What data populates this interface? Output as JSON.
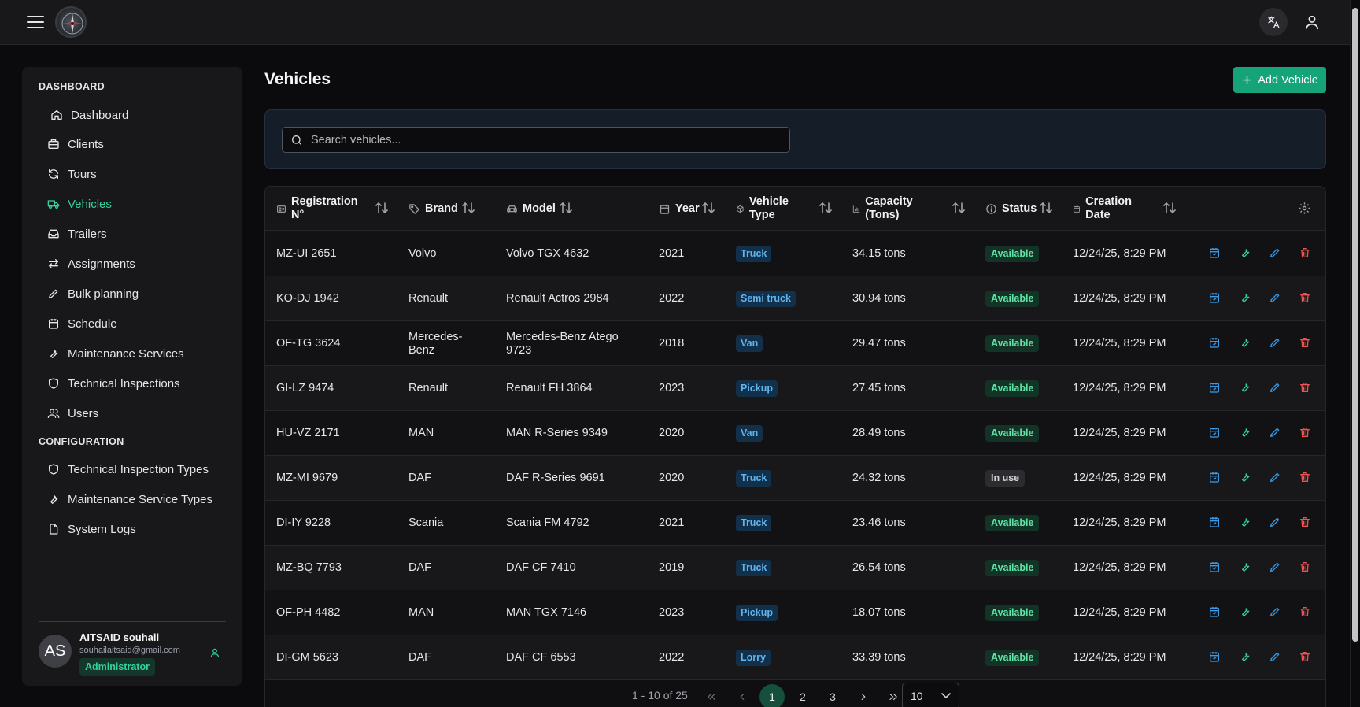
{
  "sidebar": {
    "dashboard_section": "DASHBOARD",
    "config_section": "CONFIGURATION",
    "items": [
      {
        "label": "Dashboard"
      },
      {
        "label": "Clients"
      },
      {
        "label": "Tours"
      },
      {
        "label": "Vehicles"
      },
      {
        "label": "Trailers"
      },
      {
        "label": "Assignments"
      },
      {
        "label": "Bulk planning"
      },
      {
        "label": "Schedule"
      },
      {
        "label": "Maintenance Services"
      },
      {
        "label": "Technical Inspections"
      },
      {
        "label": "Users"
      }
    ],
    "config_items": [
      {
        "label": "Technical Inspection Types"
      },
      {
        "label": "Maintenance Service Types"
      },
      {
        "label": "System Logs"
      }
    ],
    "user": {
      "initials": "AS",
      "name": "AITSAID souhail",
      "email": "souhailaitsaid@gmail.com",
      "role": "Administrator"
    }
  },
  "header": {
    "title": "Vehicles",
    "add_label": "Add Vehicle"
  },
  "search": {
    "placeholder": "Search vehicles..."
  },
  "table": {
    "columns": {
      "registration": "Registration N°",
      "brand": "Brand",
      "model": "Model",
      "year": "Year",
      "vehicle_type": "Vehicle Type",
      "capacity": "Capacity (Tons)",
      "status": "Status",
      "creation_date": "Creation Date"
    },
    "rows": [
      {
        "reg": "MZ-UI 2651",
        "brand": "Volvo",
        "model": "Volvo TGX 4632",
        "year": "2021",
        "type": "Truck",
        "capacity": "34.15 tons",
        "status": "Available",
        "date": "12/24/25, 8:29 PM"
      },
      {
        "reg": "KO-DJ 1942",
        "brand": "Renault",
        "model": "Renault Actros 2984",
        "year": "2022",
        "type": "Semi truck",
        "capacity": "30.94 tons",
        "status": "Available",
        "date": "12/24/25, 8:29 PM"
      },
      {
        "reg": "OF-TG 3624",
        "brand": "Mercedes-Benz",
        "model": "Mercedes-Benz Atego 9723",
        "year": "2018",
        "type": "Van",
        "capacity": "29.47 tons",
        "status": "Available",
        "date": "12/24/25, 8:29 PM"
      },
      {
        "reg": "GI-LZ 9474",
        "brand": "Renault",
        "model": "Renault FH 3864",
        "year": "2023",
        "type": "Pickup",
        "capacity": "27.45 tons",
        "status": "Available",
        "date": "12/24/25, 8:29 PM"
      },
      {
        "reg": "HU-VZ 2171",
        "brand": "MAN",
        "model": "MAN R-Series 9349",
        "year": "2020",
        "type": "Van",
        "capacity": "28.49 tons",
        "status": "Available",
        "date": "12/24/25, 8:29 PM"
      },
      {
        "reg": "MZ-MI 9679",
        "brand": "DAF",
        "model": "DAF R-Series 9691",
        "year": "2020",
        "type": "Truck",
        "capacity": "24.32 tons",
        "status": "In use",
        "date": "12/24/25, 8:29 PM"
      },
      {
        "reg": "DI-IY 9228",
        "brand": "Scania",
        "model": "Scania FM 4792",
        "year": "2021",
        "type": "Truck",
        "capacity": "23.46 tons",
        "status": "Available",
        "date": "12/24/25, 8:29 PM"
      },
      {
        "reg": "MZ-BQ 7793",
        "brand": "DAF",
        "model": "DAF CF 7410",
        "year": "2019",
        "type": "Truck",
        "capacity": "26.54 tons",
        "status": "Available",
        "date": "12/24/25, 8:29 PM"
      },
      {
        "reg": "OF-PH 4482",
        "brand": "MAN",
        "model": "MAN TGX 7146",
        "year": "2023",
        "type": "Pickup",
        "capacity": "18.07 tons",
        "status": "Available",
        "date": "12/24/25, 8:29 PM"
      },
      {
        "reg": "DI-GM 5623",
        "brand": "DAF",
        "model": "DAF CF 6553",
        "year": "2022",
        "type": "Lorry",
        "capacity": "33.39 tons",
        "status": "Available",
        "date": "12/24/25, 8:29 PM"
      }
    ]
  },
  "pagination": {
    "info": "1 - 10 of 25",
    "pages": [
      "1",
      "2",
      "3"
    ],
    "current": "1",
    "per_page": "10"
  },
  "colors": {
    "accent": "#34d399",
    "primary_button": "#15a378",
    "action_blue": "#3b9ae6",
    "action_green": "#34d399",
    "action_red": "#f05252"
  },
  "icons": {
    "row_actions": [
      "calendar-icon",
      "wrench-icon",
      "edit-icon",
      "trash-icon"
    ]
  }
}
